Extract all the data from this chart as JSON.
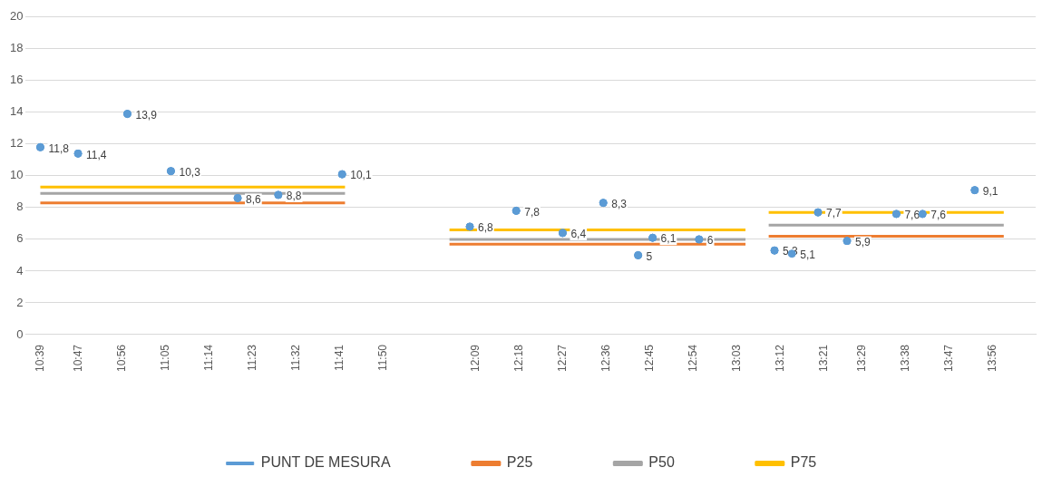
{
  "chart_data": {
    "type": "scatter",
    "ylim": [
      0,
      20
    ],
    "yticks": [
      0,
      2,
      4,
      6,
      8,
      10,
      12,
      14,
      16,
      18,
      20
    ],
    "xlim": [
      10.6,
      14.08
    ],
    "xticks": [
      {
        "value": 10.65,
        "label": "10:39"
      },
      {
        "value": 10.7833,
        "label": "10:47"
      },
      {
        "value": 10.9333,
        "label": "10:56"
      },
      {
        "value": 11.0833,
        "label": "11:05"
      },
      {
        "value": 11.2333,
        "label": "11:14"
      },
      {
        "value": 11.3833,
        "label": "11:23"
      },
      {
        "value": 11.5333,
        "label": "11:32"
      },
      {
        "value": 11.6833,
        "label": "11:41"
      },
      {
        "value": 11.8333,
        "label": "11:50"
      },
      {
        "value": 12.15,
        "label": "12:09"
      },
      {
        "value": 12.3,
        "label": "12:18"
      },
      {
        "value": 12.45,
        "label": "12:27"
      },
      {
        "value": 12.6,
        "label": "12:36"
      },
      {
        "value": 12.75,
        "label": "12:45"
      },
      {
        "value": 12.9,
        "label": "12:54"
      },
      {
        "value": 13.05,
        "label": "13:03"
      },
      {
        "value": 13.2,
        "label": "13:12"
      },
      {
        "value": 13.35,
        "label": "13:21"
      },
      {
        "value": 13.4833,
        "label": "13:29"
      },
      {
        "value": 13.6333,
        "label": "13:38"
      },
      {
        "value": 13.7833,
        "label": "13:47"
      },
      {
        "value": 13.9333,
        "label": "13:56"
      }
    ],
    "grid": "y",
    "legend": "bottom",
    "series": [
      {
        "name": "PUNT DE MESURA",
        "type": "scatter",
        "marker": "circle",
        "color": "#5b9bd5",
        "x": [
          10.65,
          10.78,
          10.95,
          11.1,
          11.33,
          11.47,
          11.69,
          12.13,
          12.29,
          12.45,
          12.59,
          12.71,
          12.76,
          12.92,
          13.18,
          13.24,
          13.33,
          13.43,
          13.6,
          13.69,
          13.87
        ],
        "values": [
          11.8,
          11.4,
          13.9,
          10.3,
          8.6,
          8.8,
          10.1,
          6.8,
          7.8,
          6.4,
          8.3,
          5,
          6.1,
          6,
          5.3,
          5.1,
          7.7,
          5.9,
          7.6,
          7.6,
          9.1
        ],
        "value_labels": [
          "11,8",
          "11,4",
          "13,9",
          "10,3",
          "8,6",
          "8,8",
          "10,1",
          "6,8",
          "7,8",
          "6,4",
          "8,3",
          "5",
          "6,1",
          "6",
          "5,3",
          "5,1",
          "7,7",
          "5,9",
          "7,6",
          "7,6",
          "9,1"
        ]
      },
      {
        "name": "P25",
        "type": "line",
        "color": "#ed7d31",
        "x": [
          10.65,
          11.7,
          11.9,
          12.06,
          13.08,
          13.12,
          13.16,
          13.97
        ],
        "values": [
          8.3,
          8.3,
          null,
          5.7,
          5.7,
          null,
          6.2,
          6.2
        ]
      },
      {
        "name": "P50",
        "type": "line",
        "color": "#a5a5a5",
        "x": [
          10.65,
          11.7,
          11.9,
          12.06,
          13.08,
          13.12,
          13.16,
          13.97
        ],
        "values": [
          8.9,
          8.9,
          null,
          6,
          6,
          null,
          6.9,
          6.9
        ]
      },
      {
        "name": "P75",
        "type": "line",
        "color": "#ffc000",
        "x": [
          10.65,
          11.7,
          11.9,
          12.06,
          13.08,
          13.12,
          13.16,
          13.97
        ],
        "values": [
          9.3,
          9.3,
          null,
          6.6,
          6.6,
          null,
          7.7,
          7.7
        ]
      }
    ]
  }
}
